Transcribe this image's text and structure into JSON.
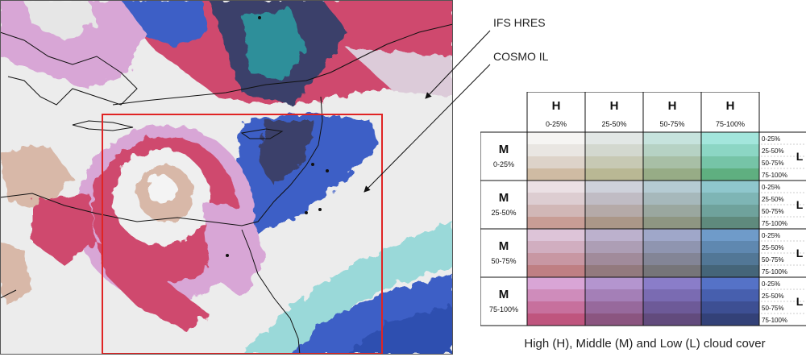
{
  "labels": {
    "ifs": "IFS HRES",
    "cosmo": "COSMO IL"
  },
  "legend": {
    "high_letter": "H",
    "middle_letter": "M",
    "low_letter": "L",
    "high_ranges": [
      "0-25%",
      "25-50%",
      "50-75%",
      "75-100%"
    ],
    "middle_ranges": [
      "0-25%",
      "25-50%",
      "50-75%",
      "75-100%"
    ],
    "low_ranges": [
      "0-25%",
      "25-50%",
      "50-75%",
      "75-100%"
    ],
    "colors": [
      [
        [
          "#f6f5f3",
          "#e9e6e2",
          "#ddd3c9",
          "#cfbba3"
        ],
        [
          "#e2e7e5",
          "#d3d8cf",
          "#c7c9b4",
          "#b9b894"
        ],
        [
          "#c6e3dd",
          "#b6d2c4",
          "#a8bfa6",
          "#97ac86"
        ],
        [
          "#a3e6dc",
          "#8cd6c4",
          "#76c4a7",
          "#5faf80"
        ]
      ],
      [
        [
          "#ebe0e4",
          "#ddcdd1",
          "#d1b7b6",
          "#c89d95"
        ],
        [
          "#ced1da",
          "#c0bcc4",
          "#b5aaa8",
          "#ab9788"
        ],
        [
          "#b5cbd3",
          "#a6b8bb",
          "#9aa79f",
          "#8e9682"
        ],
        [
          "#8fc7cd",
          "#7eb5b5",
          "#6fa29c",
          "#5f8a7d"
        ]
      ],
      [
        [
          "#ddc4d8",
          "#d1aec0",
          "#c897a3",
          "#bf7f83"
        ],
        [
          "#bcb1cd",
          "#ad9eb5",
          "#a18b9b",
          "#937a7e"
        ],
        [
          "#9fa7c9",
          "#8f95b0",
          "#838596",
          "#767579"
        ],
        [
          "#6f9bc9",
          "#5f88b0",
          "#527796",
          "#456579"
        ]
      ],
      [
        [
          "#d9a5d6",
          "#cf8cbb",
          "#c7709d",
          "#bf557e"
        ],
        [
          "#b495cf",
          "#a47fb7",
          "#97699c",
          "#8b5580"
        ],
        [
          "#8a7dc9",
          "#7a6bb2",
          "#6d5a98",
          "#624b7d"
        ],
        [
          "#5572c7",
          "#475fae",
          "#3d4f93",
          "#334178"
        ]
      ]
    ]
  },
  "caption": "High (H), Middle (M) and Low (L) cloud cover"
}
